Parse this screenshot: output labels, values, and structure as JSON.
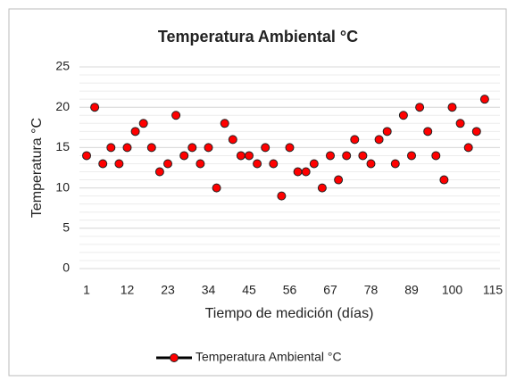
{
  "chart_data": {
    "type": "line",
    "title": "Temperatura Ambiental °C",
    "xlabel": "Tiempo de medición (días)",
    "ylabel": "Temperatura °C",
    "categories": [
      "1",
      null,
      null,
      null,
      null,
      "12",
      null,
      null,
      null,
      null,
      "23",
      null,
      null,
      null,
      null,
      "34",
      null,
      null,
      null,
      null,
      "45",
      null,
      null,
      null,
      null,
      "56",
      null,
      null,
      null,
      null,
      "67",
      null,
      null,
      null,
      null,
      "78",
      null,
      null,
      null,
      null,
      "89",
      null,
      null,
      null,
      null,
      "100",
      null,
      null,
      null,
      null,
      "115"
    ],
    "series": [
      {
        "name": "Temperatura Ambiental °C",
        "color": "#ff0000",
        "line_color": "#000000",
        "show_line": false,
        "values": [
          14,
          20,
          13,
          15,
          13,
          15,
          17,
          18,
          15,
          12,
          13,
          19,
          14,
          15,
          13,
          15,
          10,
          18,
          16,
          14,
          14,
          13,
          15,
          13,
          9,
          15,
          12,
          12,
          13,
          10,
          14,
          11,
          14,
          16,
          14,
          13,
          16,
          17,
          13,
          19,
          14,
          20,
          17,
          14,
          11,
          20,
          18,
          15,
          17,
          21,
          null
        ]
      }
    ],
    "ylim": [
      0,
      25
    ],
    "yticks": [
      0,
      5,
      10,
      15,
      20,
      25
    ],
    "grid": true,
    "minor_grid": true,
    "legend": "bottom"
  }
}
